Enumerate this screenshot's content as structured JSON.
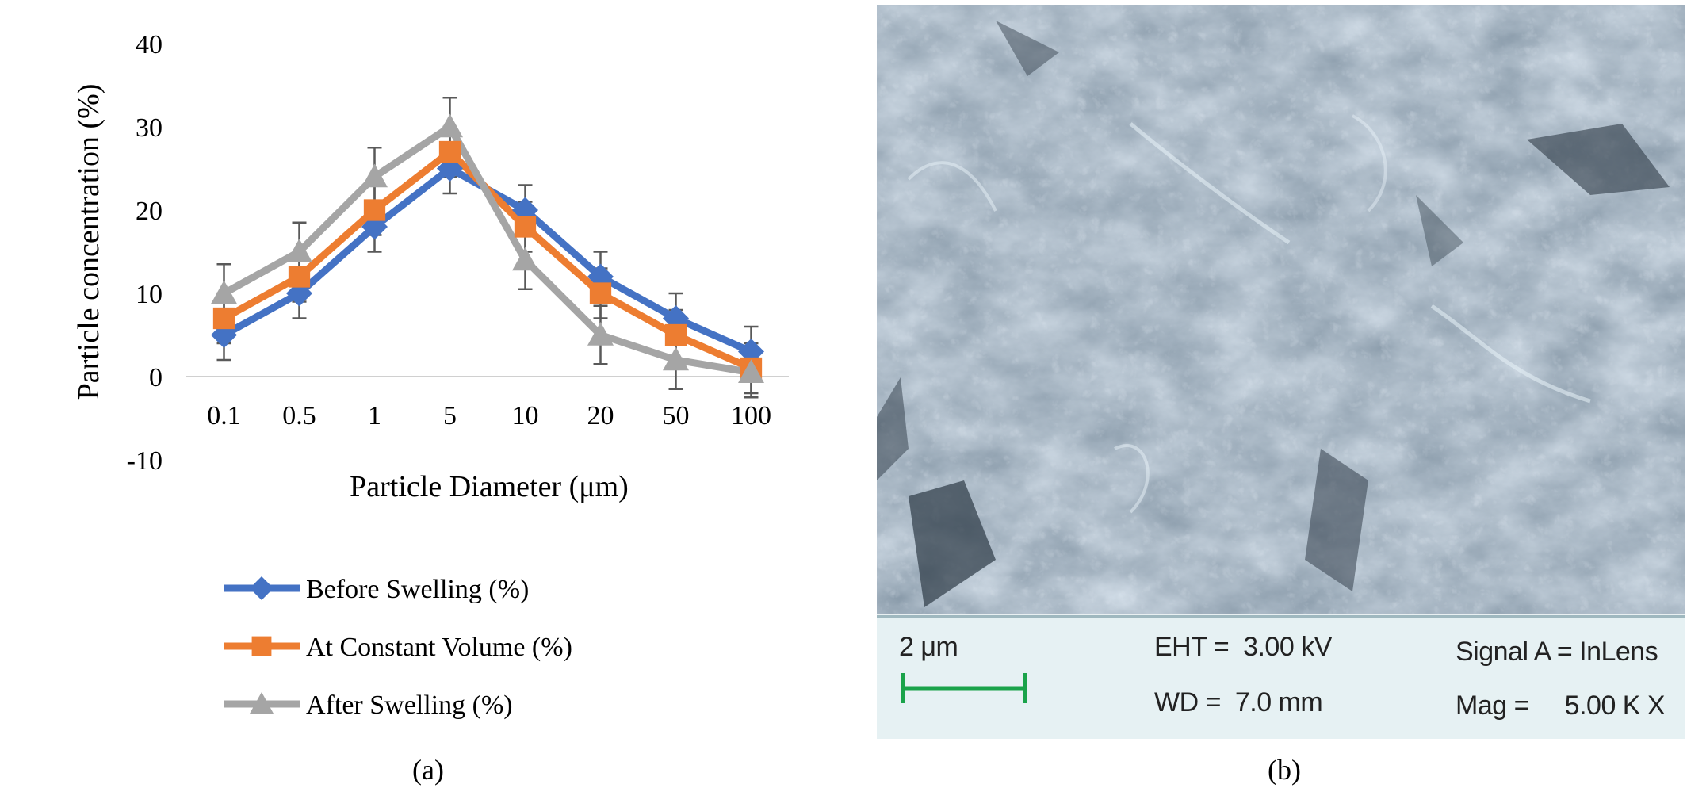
{
  "chart_data": {
    "type": "line",
    "categories": [
      "0.1",
      "0.5",
      "1",
      "5",
      "10",
      "20",
      "50",
      "100"
    ],
    "series": [
      {
        "name": "Before Swelling (%)",
        "color": "#4472C4",
        "marker": "diamond",
        "values": [
          5,
          10,
          18,
          25,
          20,
          12,
          7,
          3
        ],
        "error": [
          3,
          3,
          3,
          3,
          3,
          3,
          3,
          3
        ]
      },
      {
        "name": "At Constant Volume (%)",
        "color": "#ED7D31",
        "marker": "square",
        "values": [
          7,
          12,
          20,
          27,
          18,
          10,
          5,
          1
        ],
        "error": [
          3,
          3,
          3,
          3,
          3,
          3,
          3,
          3
        ]
      },
      {
        "name": "After Swelling (%)",
        "color": "#A5A5A5",
        "marker": "triangle",
        "values": [
          10,
          15,
          24,
          30,
          14,
          5,
          2,
          0.5
        ],
        "error": [
          3.5,
          3.5,
          3.5,
          3.5,
          3.5,
          3.5,
          3.5,
          3
        ]
      }
    ],
    "xlabel": "Particle Diameter (μm)",
    "ylabel": "Particle concentration (%)",
    "ylim": [
      -10,
      40
    ],
    "yticks": [
      "40",
      "30",
      "20",
      "10",
      "0",
      "-10"
    ],
    "grid": false,
    "legend": "bottom",
    "error_bar_color": "#595959"
  },
  "labels": {
    "panel_a": "(a)",
    "panel_b": "(b)"
  },
  "sem": {
    "scale_label": "2 μm",
    "eht": "EHT =  3.00 kV",
    "wd": "WD =  7.0 mm",
    "signal": "Signal A = InLens",
    "mag": "Mag =     5.00 K X",
    "scale_color": "#1aa34a"
  }
}
